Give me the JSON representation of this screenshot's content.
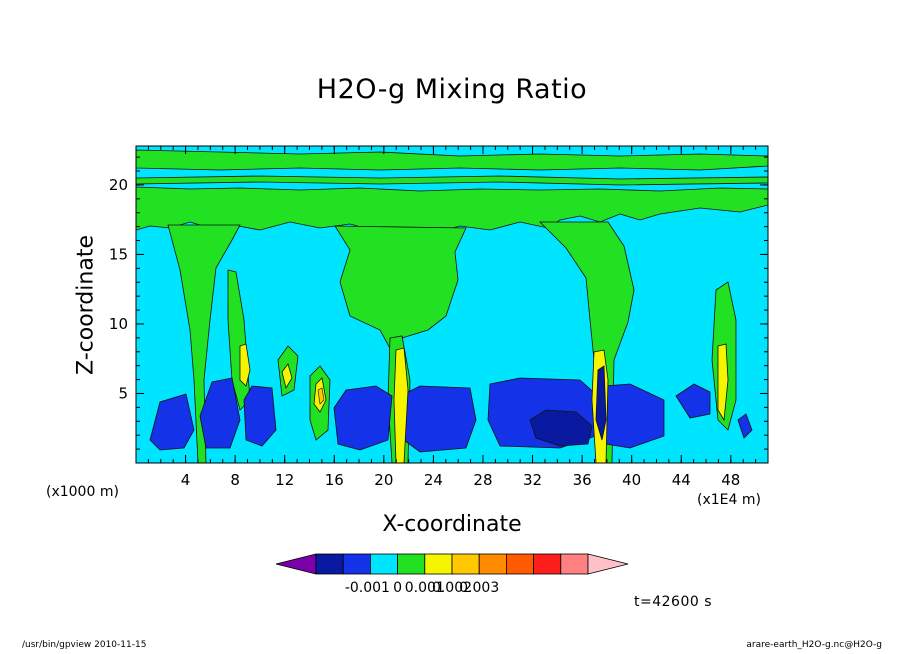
{
  "chart_data": {
    "type": "heatmap",
    "title": "H2O-g Mixing Ratio",
    "xlabel": "X-coordinate",
    "ylabel": "Z-coordinate",
    "x_unit_note": "(x1E4 m)",
    "y_unit_note": "(x1000 m)",
    "xlim": [
      0,
      51
    ],
    "ylim": [
      0,
      22.8
    ],
    "x_ticks": [
      4,
      8,
      12,
      16,
      20,
      24,
      28,
      32,
      36,
      40,
      44,
      48
    ],
    "y_ticks": [
      5,
      10,
      15,
      20
    ],
    "colorbar": {
      "colors": [
        "#7a00a8",
        "#0a1aa0",
        "#1432e8",
        "#00e5ff",
        "#22e022",
        "#f5f500",
        "#ffc800",
        "#ff8c00",
        "#ff5a00",
        "#ff1e1e",
        "#ff8080",
        "#ffc0c8"
      ],
      "tick_labels": [
        "-0.001",
        "0",
        "0.001",
        "0.002",
        "0.003"
      ],
      "tick_values": [
        -0.001,
        0,
        0.001,
        0.002,
        0.003
      ]
    },
    "background_color": "#00e5ff",
    "regions": [
      {
        "name": "low-level-negative-band",
        "value": -0.0005,
        "color": "#1432e8",
        "x": [
          1.2,
          50.5
        ],
        "z": [
          0.8,
          5.8
        ]
      },
      {
        "name": "deep-negative-core",
        "value": -0.001,
        "color": "#0a1aa0",
        "x": [
          32.0,
          38.0
        ],
        "z": [
          1.3,
          3.5
        ]
      },
      {
        "name": "upper-positive-layer",
        "value": 0.0002,
        "color": "#22e022",
        "x": [
          0,
          51
        ],
        "z": [
          16.5,
          20.5
        ]
      },
      {
        "name": "central-plume",
        "value": 0.0002,
        "color": "#22e022",
        "x": [
          16.5,
          25.5
        ],
        "z": [
          9.5,
          18.5
        ]
      },
      {
        "name": "east-plume",
        "value": 0.0002,
        "color": "#22e022",
        "x": [
          35.5,
          40.5
        ],
        "z": [
          0,
          17.5
        ]
      },
      {
        "name": "column-x21",
        "value": 0.0008,
        "color": "#f5f500",
        "x": [
          20.8,
          21.8
        ],
        "z": [
          0,
          9
        ]
      },
      {
        "name": "column-x37",
        "value": 0.0008,
        "color": "#f5f500",
        "x": [
          36.8,
          38.2
        ],
        "z": [
          0,
          8
        ]
      },
      {
        "name": "column-x48",
        "value": 0.0006,
        "color": "#f5f500",
        "x": [
          47.2,
          48.2
        ],
        "z": [
          2.5,
          8.5
        ]
      }
    ]
  },
  "time_label": "t=42600 s",
  "footer": {
    "left": "/usr/bin/gpview   2010-11-15",
    "right": "arare-earth_H2O-g.nc@H2O-g"
  }
}
